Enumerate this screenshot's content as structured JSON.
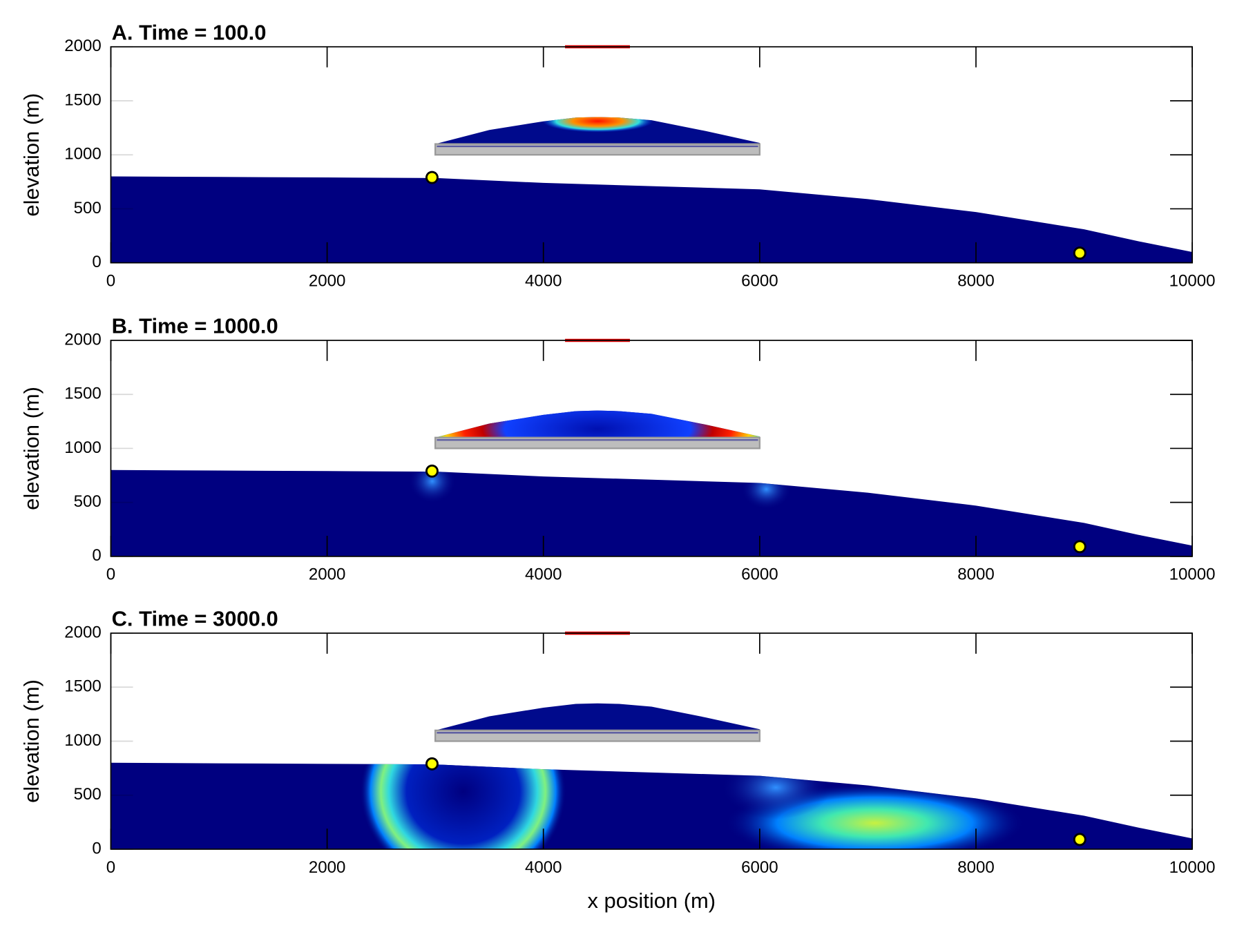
{
  "chart_data": [
    {
      "type": "area",
      "title": "A. Time = 100.0",
      "ylabel": "elevation (m)",
      "xlim": [
        0,
        10000
      ],
      "ylim": [
        0,
        2000
      ],
      "xticks": [
        0,
        2000,
        4000,
        6000,
        8000,
        10000
      ],
      "yticks": [
        0,
        500,
        1000,
        1500,
        2000
      ],
      "ground": {
        "x": [
          0,
          1000,
          2000,
          3000,
          4000,
          5000,
          6000,
          7000,
          8000,
          9000,
          9500,
          10000
        ],
        "y": [
          800,
          795,
          790,
          785,
          740,
          710,
          680,
          590,
          470,
          310,
          200,
          100
        ]
      },
      "pile": {
        "x": [
          3000,
          3500,
          4000,
          4300,
          4500,
          4700,
          5000,
          5500,
          6000
        ],
        "y": [
          1100,
          1230,
          1310,
          1345,
          1350,
          1345,
          1320,
          1220,
          1110
        ]
      },
      "liner": {
        "x": [
          3000,
          6000
        ],
        "y": [
          1000,
          1100
        ]
      },
      "points": {
        "x": [
          2970,
          8960
        ],
        "y": [
          790,
          90
        ]
      },
      "marker_line": {
        "x": [
          4200,
          4800
        ],
        "y": 2000
      },
      "colors": {
        "ground": "#000080",
        "pile": "#000a8c",
        "liner": "#bdbdbd",
        "points": "#ffff00",
        "marker_line": "#e00000"
      }
    },
    {
      "type": "area",
      "title": "B. Time = 1000.0",
      "ylabel": "elevation (m)",
      "xlim": [
        0,
        10000
      ],
      "ylim": [
        0,
        2000
      ],
      "xticks": [
        0,
        2000,
        4000,
        6000,
        8000,
        10000
      ],
      "yticks": [
        0,
        500,
        1000,
        1500,
        2000
      ],
      "ground": {
        "x": [
          0,
          1000,
          2000,
          3000,
          4000,
          5000,
          6000,
          7000,
          8000,
          9000,
          9500,
          10000
        ],
        "y": [
          800,
          795,
          790,
          785,
          740,
          710,
          680,
          590,
          470,
          310,
          200,
          100
        ]
      },
      "pile": {
        "x": [
          3000,
          3500,
          4000,
          4300,
          4500,
          4700,
          5000,
          5500,
          6000
        ],
        "y": [
          1100,
          1230,
          1310,
          1345,
          1350,
          1345,
          1320,
          1220,
          1110
        ]
      },
      "liner": {
        "x": [
          3000,
          6000
        ],
        "y": [
          1000,
          1100
        ]
      },
      "points": {
        "x": [
          2970,
          8960
        ],
        "y": [
          790,
          90
        ]
      },
      "marker_line": {
        "x": [
          4200,
          4800
        ],
        "y": 2000
      },
      "colors": {
        "ground": "#000080",
        "pile": "#000a8c",
        "liner": "#bdbdbd",
        "points": "#ffff00",
        "marker_line": "#e00000"
      }
    },
    {
      "type": "area",
      "title": "C. Time = 3000.0",
      "ylabel": "elevation (m)",
      "xlabel": "x position (m)",
      "xlim": [
        0,
        10000
      ],
      "ylim": [
        0,
        2000
      ],
      "xticks": [
        0,
        2000,
        4000,
        6000,
        8000,
        10000
      ],
      "yticks": [
        0,
        500,
        1000,
        1500,
        2000
      ],
      "ground": {
        "x": [
          0,
          1000,
          2000,
          3000,
          4000,
          5000,
          6000,
          7000,
          8000,
          9000,
          9500,
          10000
        ],
        "y": [
          800,
          795,
          790,
          785,
          740,
          710,
          680,
          590,
          470,
          310,
          200,
          100
        ]
      },
      "pile": {
        "x": [
          3000,
          3500,
          4000,
          4300,
          4500,
          4700,
          5000,
          5500,
          6000
        ],
        "y": [
          1100,
          1230,
          1310,
          1345,
          1350,
          1345,
          1320,
          1220,
          1110
        ]
      },
      "liner": {
        "x": [
          3000,
          6000
        ],
        "y": [
          1000,
          1100
        ]
      },
      "points": {
        "x": [
          2970,
          8960
        ],
        "y": [
          790,
          90
        ]
      },
      "marker_line": {
        "x": [
          4200,
          4800
        ],
        "y": 2000
      },
      "colors": {
        "ground": "#000080",
        "pile": "#000a8c",
        "liner": "#bdbdbd",
        "points": "#ffff00",
        "marker_line": "#e00000"
      }
    }
  ]
}
